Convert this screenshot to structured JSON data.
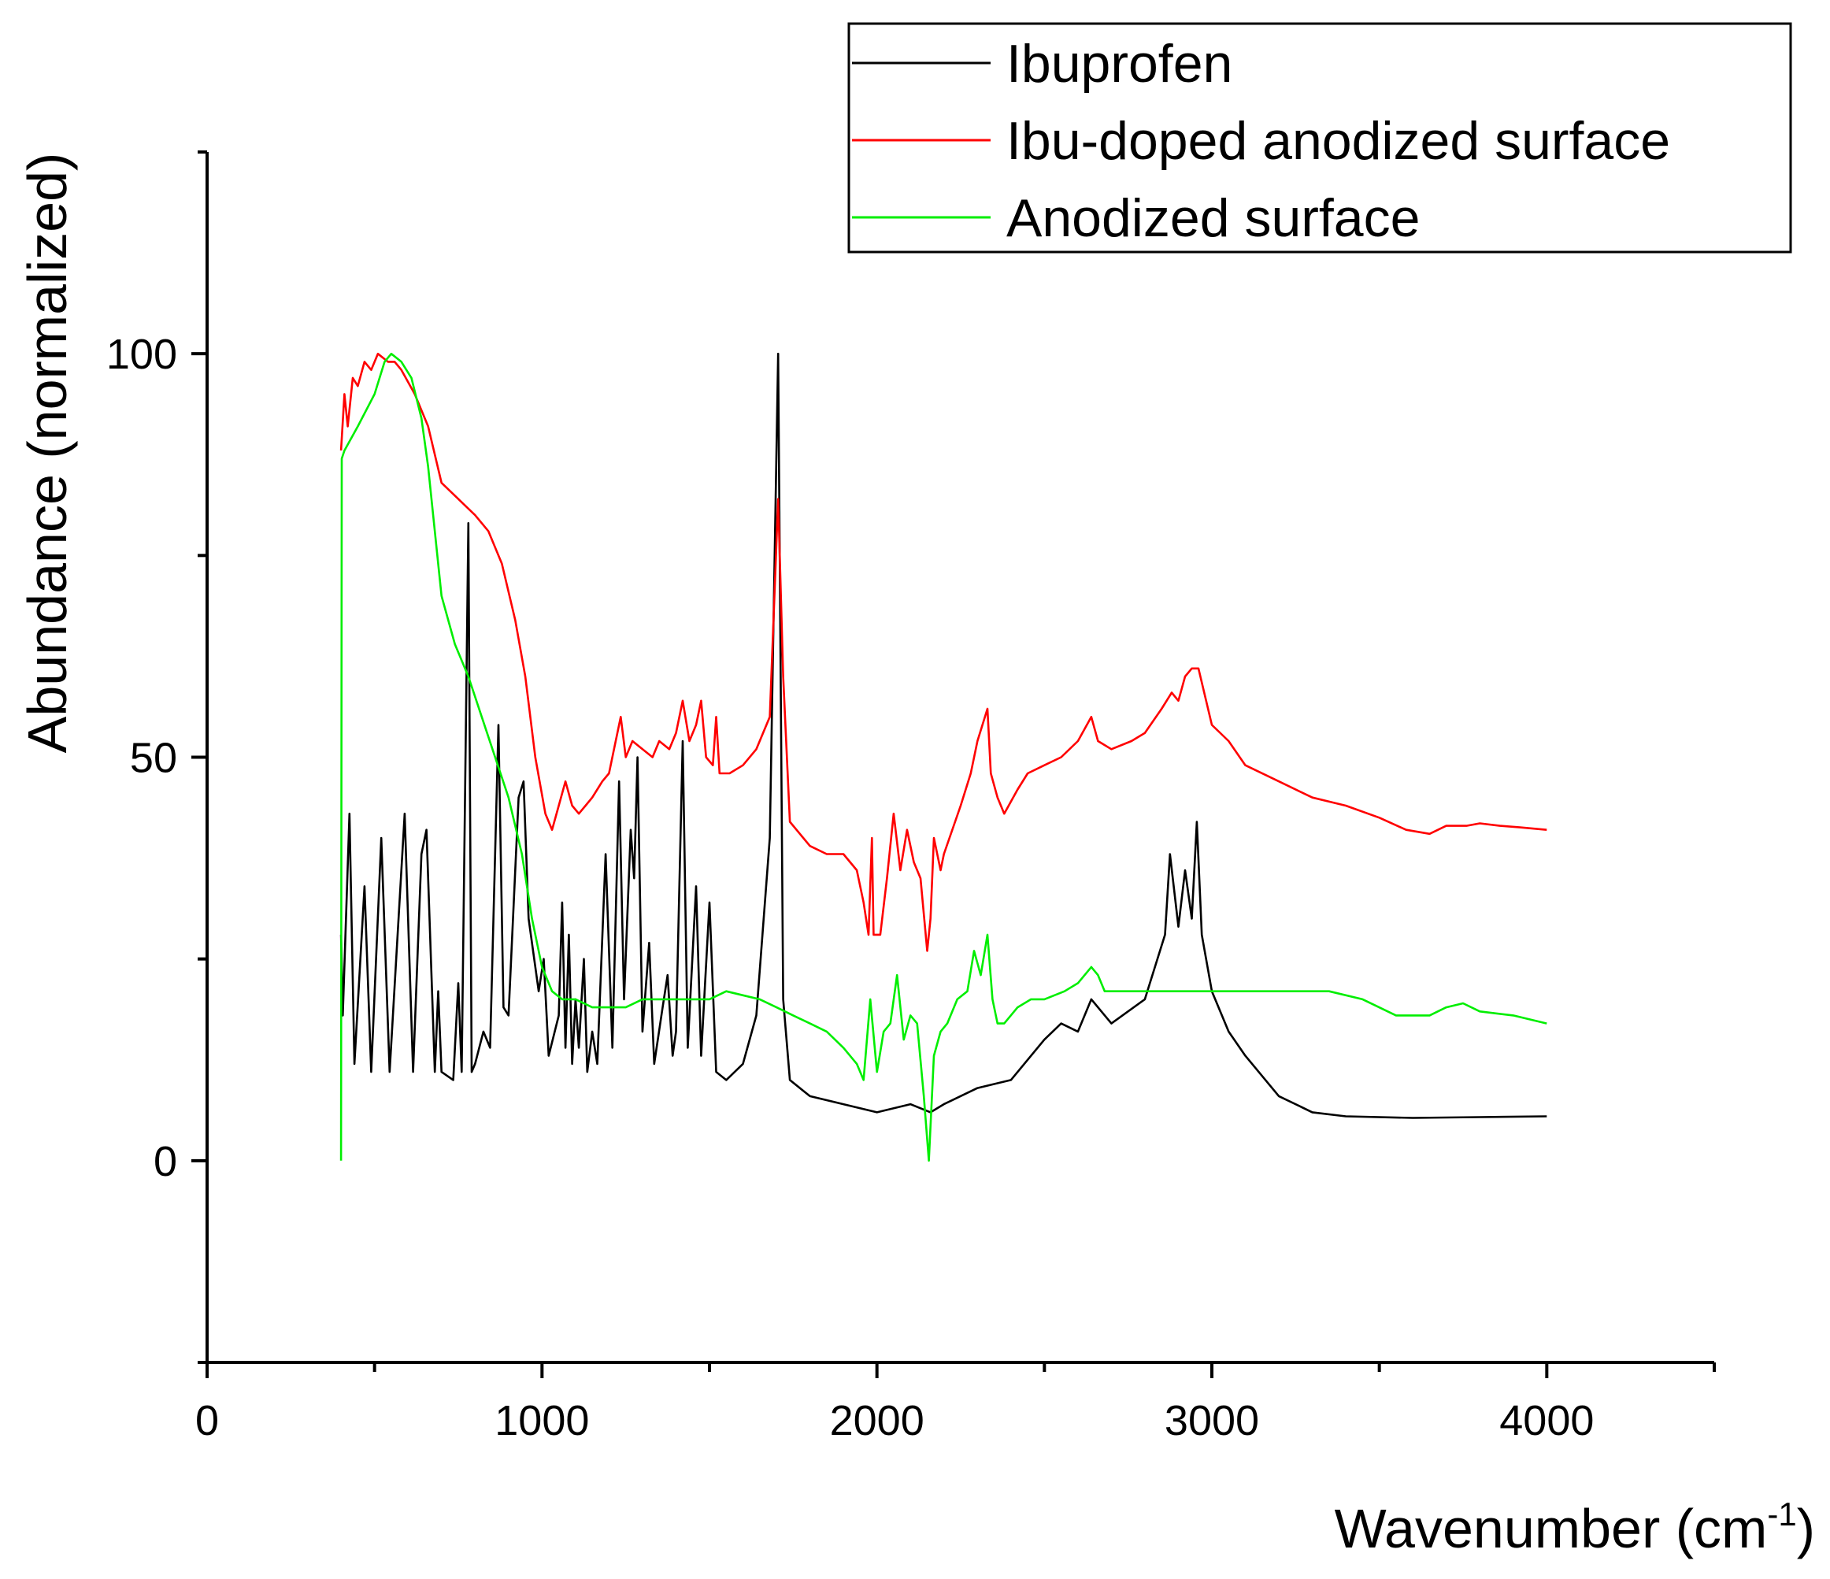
{
  "chart_data": {
    "type": "line",
    "title": "",
    "xlabel": "Wavenumber (cm",
    "xlabel_sup": "-1",
    "xlabel_close": ")",
    "ylabel": "Abundance (normalized)",
    "xlim": [
      0,
      4500
    ],
    "ylim": [
      -25,
      125
    ],
    "xticks": [
      0,
      1000,
      2000,
      3000,
      4000
    ],
    "xticks_minor": [
      500,
      1500,
      2500,
      3500,
      4500
    ],
    "yticks": [
      0,
      50,
      100
    ],
    "yticks_minor": [
      -25,
      25,
      75,
      125
    ],
    "legend_position": "top-right",
    "series": [
      {
        "name": "Ibuprofen",
        "color": "#000000",
        "points": [
          [
            400,
            28
          ],
          [
            405,
            18
          ],
          [
            425,
            43
          ],
          [
            440,
            12
          ],
          [
            470,
            34
          ],
          [
            490,
            11
          ],
          [
            520,
            40
          ],
          [
            545,
            11
          ],
          [
            590,
            43
          ],
          [
            615,
            11
          ],
          [
            640,
            38
          ],
          [
            655,
            41
          ],
          [
            680,
            11
          ],
          [
            690,
            21
          ],
          [
            700,
            11
          ],
          [
            735,
            10
          ],
          [
            750,
            22
          ],
          [
            760,
            11
          ],
          [
            780,
            79
          ],
          [
            790,
            11
          ],
          [
            800,
            12
          ],
          [
            825,
            16
          ],
          [
            845,
            14
          ],
          [
            870,
            54
          ],
          [
            885,
            19
          ],
          [
            900,
            18
          ],
          [
            930,
            45
          ],
          [
            945,
            47
          ],
          [
            960,
            30
          ],
          [
            990,
            21
          ],
          [
            1005,
            25
          ],
          [
            1020,
            13
          ],
          [
            1050,
            18
          ],
          [
            1060,
            32
          ],
          [
            1070,
            14
          ],
          [
            1080,
            28
          ],
          [
            1090,
            12
          ],
          [
            1100,
            20
          ],
          [
            1110,
            14
          ],
          [
            1125,
            25
          ],
          [
            1135,
            11
          ],
          [
            1150,
            16
          ],
          [
            1165,
            12
          ],
          [
            1190,
            38
          ],
          [
            1210,
            14
          ],
          [
            1230,
            47
          ],
          [
            1245,
            20
          ],
          [
            1265,
            41
          ],
          [
            1275,
            35
          ],
          [
            1285,
            50
          ],
          [
            1300,
            16
          ],
          [
            1320,
            27
          ],
          [
            1335,
            12
          ],
          [
            1360,
            19
          ],
          [
            1375,
            23
          ],
          [
            1390,
            13
          ],
          [
            1400,
            16
          ],
          [
            1420,
            52
          ],
          [
            1435,
            14
          ],
          [
            1460,
            34
          ],
          [
            1475,
            13
          ],
          [
            1500,
            32
          ],
          [
            1520,
            11
          ],
          [
            1550,
            10
          ],
          [
            1600,
            12
          ],
          [
            1640,
            18
          ],
          [
            1680,
            40
          ],
          [
            1705,
            100
          ],
          [
            1720,
            20
          ],
          [
            1740,
            10
          ],
          [
            1800,
            8
          ],
          [
            1900,
            7
          ],
          [
            2000,
            6
          ],
          [
            2100,
            7
          ],
          [
            2160,
            6
          ],
          [
            2200,
            7
          ],
          [
            2300,
            9
          ],
          [
            2400,
            10
          ],
          [
            2500,
            15
          ],
          [
            2550,
            17
          ],
          [
            2600,
            16
          ],
          [
            2640,
            20
          ],
          [
            2700,
            17
          ],
          [
            2800,
            20
          ],
          [
            2860,
            28
          ],
          [
            2875,
            38
          ],
          [
            2900,
            29
          ],
          [
            2920,
            36
          ],
          [
            2940,
            30
          ],
          [
            2955,
            42
          ],
          [
            2970,
            28
          ],
          [
            3000,
            21
          ],
          [
            3050,
            16
          ],
          [
            3100,
            13
          ],
          [
            3200,
            8
          ],
          [
            3300,
            6
          ],
          [
            3400,
            5.5
          ],
          [
            3600,
            5.3
          ],
          [
            3800,
            5.4
          ],
          [
            4000,
            5.5
          ]
        ]
      },
      {
        "name": "Ibu-doped anodized surface",
        "color": "#ff0000",
        "points": [
          [
            400,
            88
          ],
          [
            410,
            95
          ],
          [
            420,
            91
          ],
          [
            435,
            97
          ],
          [
            450,
            96
          ],
          [
            470,
            99
          ],
          [
            490,
            98
          ],
          [
            510,
            100
          ],
          [
            540,
            99
          ],
          [
            560,
            99
          ],
          [
            580,
            98
          ],
          [
            620,
            95
          ],
          [
            660,
            91
          ],
          [
            700,
            84
          ],
          [
            750,
            82
          ],
          [
            800,
            80
          ],
          [
            840,
            78
          ],
          [
            880,
            74
          ],
          [
            920,
            67
          ],
          [
            950,
            60
          ],
          [
            980,
            50
          ],
          [
            1010,
            43
          ],
          [
            1030,
            41
          ],
          [
            1050,
            44
          ],
          [
            1070,
            47
          ],
          [
            1090,
            44
          ],
          [
            1110,
            43
          ],
          [
            1130,
            44
          ],
          [
            1150,
            45
          ],
          [
            1180,
            47
          ],
          [
            1200,
            48
          ],
          [
            1220,
            52
          ],
          [
            1235,
            55
          ],
          [
            1250,
            50
          ],
          [
            1270,
            52
          ],
          [
            1300,
            51
          ],
          [
            1330,
            50
          ],
          [
            1350,
            52
          ],
          [
            1380,
            51
          ],
          [
            1400,
            53
          ],
          [
            1420,
            57
          ],
          [
            1440,
            52
          ],
          [
            1460,
            54
          ],
          [
            1475,
            57
          ],
          [
            1490,
            50
          ],
          [
            1510,
            49
          ],
          [
            1520,
            55
          ],
          [
            1530,
            48
          ],
          [
            1560,
            48
          ],
          [
            1600,
            49
          ],
          [
            1640,
            51
          ],
          [
            1680,
            55
          ],
          [
            1705,
            82
          ],
          [
            1720,
            60
          ],
          [
            1740,
            42
          ],
          [
            1780,
            40
          ],
          [
            1800,
            39
          ],
          [
            1850,
            38
          ],
          [
            1900,
            38
          ],
          [
            1940,
            36
          ],
          [
            1960,
            32
          ],
          [
            1975,
            28
          ],
          [
            1985,
            40
          ],
          [
            1990,
            28
          ],
          [
            2010,
            28
          ],
          [
            2030,
            35
          ],
          [
            2050,
            43
          ],
          [
            2070,
            36
          ],
          [
            2090,
            41
          ],
          [
            2110,
            37
          ],
          [
            2130,
            35
          ],
          [
            2150,
            26
          ],
          [
            2160,
            30
          ],
          [
            2170,
            40
          ],
          [
            2190,
            36
          ],
          [
            2200,
            38
          ],
          [
            2250,
            44
          ],
          [
            2280,
            48
          ],
          [
            2300,
            52
          ],
          [
            2330,
            56
          ],
          [
            2340,
            48
          ],
          [
            2360,
            45
          ],
          [
            2380,
            43
          ],
          [
            2420,
            46
          ],
          [
            2450,
            48
          ],
          [
            2500,
            49
          ],
          [
            2550,
            50
          ],
          [
            2600,
            52
          ],
          [
            2640,
            55
          ],
          [
            2660,
            52
          ],
          [
            2700,
            51
          ],
          [
            2760,
            52
          ],
          [
            2800,
            53
          ],
          [
            2850,
            56
          ],
          [
            2880,
            58
          ],
          [
            2900,
            57
          ],
          [
            2920,
            60
          ],
          [
            2940,
            61
          ],
          [
            2960,
            61
          ],
          [
            3000,
            54
          ],
          [
            3050,
            52
          ],
          [
            3100,
            49
          ],
          [
            3200,
            47
          ],
          [
            3300,
            45
          ],
          [
            3400,
            44
          ],
          [
            3500,
            42.5
          ],
          [
            3580,
            41
          ],
          [
            3650,
            40.5
          ],
          [
            3700,
            41.5
          ],
          [
            3760,
            41.5
          ],
          [
            3800,
            41.8
          ],
          [
            3860,
            41.5
          ],
          [
            3920,
            41.3
          ],
          [
            4000,
            41
          ]
        ]
      },
      {
        "name": "Anodized surface",
        "color": "#00ee00",
        "points": [
          [
            400,
            0
          ],
          [
            402,
            87
          ],
          [
            410,
            88
          ],
          [
            450,
            91
          ],
          [
            500,
            95
          ],
          [
            530,
            99
          ],
          [
            550,
            100
          ],
          [
            580,
            99
          ],
          [
            610,
            97
          ],
          [
            640,
            92
          ],
          [
            660,
            86
          ],
          [
            680,
            78
          ],
          [
            700,
            70
          ],
          [
            740,
            64
          ],
          [
            780,
            60
          ],
          [
            820,
            55
          ],
          [
            860,
            50
          ],
          [
            900,
            45
          ],
          [
            940,
            38
          ],
          [
            970,
            30
          ],
          [
            1000,
            24
          ],
          [
            1030,
            21
          ],
          [
            1060,
            20
          ],
          [
            1100,
            20
          ],
          [
            1150,
            19
          ],
          [
            1200,
            19
          ],
          [
            1250,
            19
          ],
          [
            1300,
            20
          ],
          [
            1350,
            20
          ],
          [
            1400,
            20
          ],
          [
            1450,
            20
          ],
          [
            1500,
            20
          ],
          [
            1550,
            21
          ],
          [
            1600,
            20.5
          ],
          [
            1650,
            20
          ],
          [
            1700,
            19
          ],
          [
            1750,
            18
          ],
          [
            1800,
            17
          ],
          [
            1850,
            16
          ],
          [
            1900,
            14
          ],
          [
            1940,
            12
          ],
          [
            1960,
            10
          ],
          [
            1980,
            20
          ],
          [
            2000,
            11
          ],
          [
            2020,
            16
          ],
          [
            2040,
            17
          ],
          [
            2060,
            23
          ],
          [
            2080,
            15
          ],
          [
            2100,
            18
          ],
          [
            2120,
            17
          ],
          [
            2140,
            8
          ],
          [
            2155,
            0
          ],
          [
            2170,
            13
          ],
          [
            2190,
            16
          ],
          [
            2210,
            17
          ],
          [
            2240,
            20
          ],
          [
            2270,
            21
          ],
          [
            2290,
            26
          ],
          [
            2310,
            23
          ],
          [
            2330,
            28
          ],
          [
            2345,
            20
          ],
          [
            2360,
            17
          ],
          [
            2380,
            17
          ],
          [
            2420,
            19
          ],
          [
            2460,
            20
          ],
          [
            2500,
            20
          ],
          [
            2560,
            21
          ],
          [
            2600,
            22
          ],
          [
            2640,
            24
          ],
          [
            2660,
            23
          ],
          [
            2680,
            21
          ],
          [
            2750,
            21
          ],
          [
            2850,
            21
          ],
          [
            2950,
            21
          ],
          [
            3050,
            21
          ],
          [
            3150,
            21
          ],
          [
            3250,
            21
          ],
          [
            3300,
            21
          ],
          [
            3350,
            21
          ],
          [
            3450,
            20
          ],
          [
            3550,
            18
          ],
          [
            3600,
            18
          ],
          [
            3650,
            18
          ],
          [
            3700,
            19
          ],
          [
            3750,
            19.5
          ],
          [
            3800,
            18.5
          ],
          [
            3900,
            18
          ],
          [
            4000,
            17
          ]
        ]
      }
    ]
  }
}
